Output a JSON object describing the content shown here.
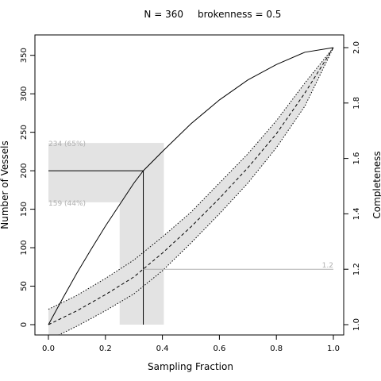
{
  "chart_data": {
    "type": "line",
    "title_parts": {
      "n": "N = 360",
      "brokenness": "brokenness = 0.5"
    },
    "xlabel": "Sampling Fraction",
    "ylabel_left": "Number of Vessels",
    "ylabel_right": "Completeness",
    "xlim": [
      0,
      1
    ],
    "ylim_left": [
      0,
      360
    ],
    "ylim_right": [
      1.0,
      2.0
    ],
    "x_ticks": [
      "0.0",
      "0.2",
      "0.4",
      "0.6",
      "0.8",
      "1.0"
    ],
    "y_left_ticks": [
      "0",
      "50",
      "100",
      "150",
      "200",
      "250",
      "300",
      "350"
    ],
    "y_right_ticks": [
      "1.0",
      "1.2",
      "1.4",
      "1.6",
      "1.8",
      "2.0"
    ],
    "grid": false,
    "colors": {
      "band": "#e3e3e3",
      "line": "#000000",
      "guide": "#b0b0b0"
    },
    "series": [
      {
        "style": "solid",
        "x": [
          0,
          0.05,
          0.1,
          0.15,
          0.2,
          0.25,
          0.3,
          0.333,
          0.4,
          0.5,
          0.6,
          0.7,
          0.8,
          0.9,
          1.0
        ],
        "y": [
          0,
          34,
          67,
          98,
          128,
          156,
          184,
          200,
          225,
          261,
          292,
          318,
          338,
          354,
          360
        ]
      },
      {
        "style": "dashed",
        "x": [
          0,
          0.1,
          0.2,
          0.3,
          0.4,
          0.5,
          0.6,
          0.7,
          0.8,
          0.9,
          1.0
        ],
        "y": [
          0,
          18,
          39,
          62,
          93,
          127,
          164,
          204,
          248,
          301,
          360
        ]
      }
    ],
    "band": {
      "style": "dotted",
      "x": [
        0,
        0.1,
        0.2,
        0.3,
        0.4,
        0.5,
        0.6,
        0.7,
        0.8,
        0.9,
        1.0
      ],
      "upper": [
        20,
        38,
        60,
        84,
        114,
        146,
        184,
        222,
        265,
        314,
        360
      ],
      "lower": [
        -20,
        -2,
        18,
        40,
        70,
        106,
        144,
        184,
        230,
        284,
        360
      ]
    },
    "annotations": {
      "sampling_fraction": 0.333,
      "vessels": 200,
      "sampling_range": [
        0.25,
        0.405
      ],
      "vessel_range": [
        159,
        234
      ],
      "completeness": 1.2,
      "upper_label": "234 (65%)",
      "lower_label": "159 (44%)",
      "completeness_label": "1.2"
    }
  }
}
